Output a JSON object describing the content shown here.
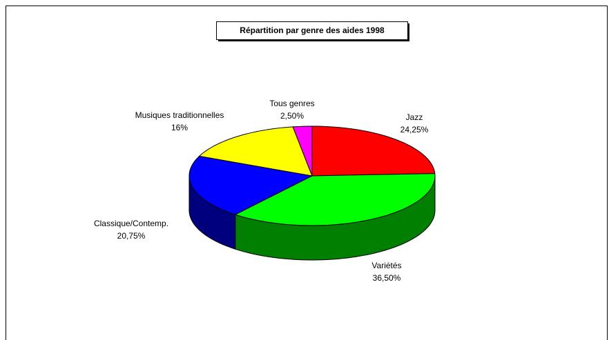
{
  "chart_data": {
    "type": "pie",
    "three_d": true,
    "title": "Répartition par genre des aides 1998",
    "categories": [
      "Jazz",
      "Variétés",
      "Classique/Contemp.",
      "Musiques traditionnelles",
      "Tous genres"
    ],
    "values": [
      24.25,
      36.5,
      20.75,
      16,
      2.5
    ],
    "value_labels": [
      "24,25%",
      "36,50%",
      "20,75%",
      "16%",
      "2,50%"
    ],
    "colors": [
      "#ff0000",
      "#00ff00",
      "#0000ff",
      "#ffff00",
      "#ff00ff"
    ]
  }
}
